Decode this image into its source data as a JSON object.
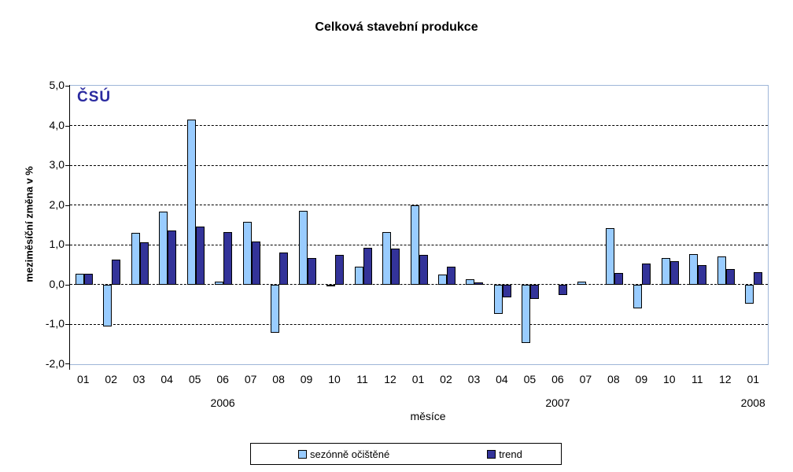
{
  "title": "Celková stavební produkce",
  "logo": "ČSÚ",
  "colors": {
    "seasonal_bar": "#99CCFF",
    "trend_bar": "#333399",
    "bar_border": "#000000",
    "plot_border": "#9EB6D8",
    "gridline": "#000000",
    "logo": "#2A2AA0",
    "text": "#000000",
    "background": "#FFFFFF"
  },
  "chart_data": {
    "type": "bar",
    "title": "Celková stavební produkce",
    "xlabel": "měsíce",
    "ylabel": "meziměsíční změna v %",
    "ylim": [
      -2.0,
      5.0
    ],
    "grid": "horizontal-dashed",
    "legend_position": "bottom",
    "yticks": [
      {
        "value": 5,
        "label": "5,0"
      },
      {
        "value": 4,
        "label": "4,0"
      },
      {
        "value": 3,
        "label": "3,0"
      },
      {
        "value": 2,
        "label": "2,0"
      },
      {
        "value": 1,
        "label": "1,0"
      },
      {
        "value": 0,
        "label": "0,0"
      },
      {
        "value": -1,
        "label": "-1,0"
      },
      {
        "value": -2,
        "label": "-2,0"
      }
    ],
    "categories": [
      "01",
      "02",
      "03",
      "04",
      "05",
      "06",
      "07",
      "08",
      "09",
      "10",
      "11",
      "12",
      "01",
      "02",
      "03",
      "04",
      "05",
      "06",
      "07",
      "08",
      "09",
      "10",
      "11",
      "12",
      "01"
    ],
    "years": [
      {
        "label": "2006",
        "months": 12
      },
      {
        "label": "2007",
        "months": 12
      },
      {
        "label": "2008",
        "months": 1
      }
    ],
    "series": [
      {
        "name": "sezónně očištěné",
        "color": "#99CCFF",
        "values": [
          0.28,
          -1.05,
          1.3,
          1.84,
          4.15,
          0.07,
          1.57,
          -1.21,
          1.86,
          -0.03,
          0.45,
          1.33,
          2.0,
          0.25,
          0.13,
          -0.73,
          -1.46,
          0.0,
          0.08,
          1.43,
          -0.6,
          0.67,
          0.77,
          0.7,
          -0.48
        ]
      },
      {
        "name": "trend",
        "color": "#333399",
        "values": [
          0.28,
          0.63,
          1.07,
          1.36,
          1.46,
          1.33,
          1.08,
          0.8,
          0.67,
          0.74,
          0.92,
          0.9,
          0.74,
          0.45,
          0.06,
          -0.32,
          -0.36,
          -0.26,
          0.0,
          0.3,
          0.53,
          0.6,
          0.49,
          0.39,
          0.31
        ]
      }
    ]
  }
}
